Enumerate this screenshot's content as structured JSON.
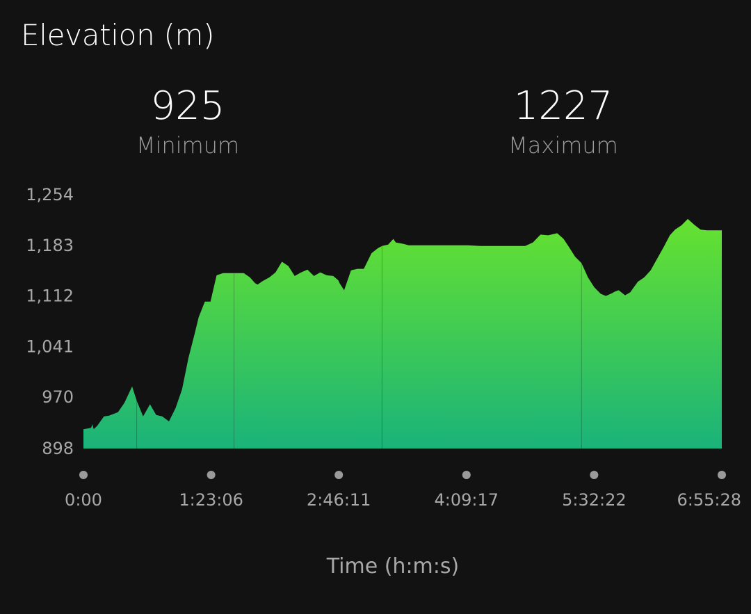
{
  "header": {
    "title": "Elevation (m)"
  },
  "stats": {
    "minimum": {
      "value": "925",
      "label": "Minimum"
    },
    "maximum": {
      "value": "1227",
      "label": "Maximum"
    }
  },
  "chart_data": {
    "type": "area",
    "title": "Elevation (m)",
    "xlabel": "Time (h:m:s)",
    "ylabel": "",
    "x_unit": "seconds",
    "xlim": [
      0,
      24928
    ],
    "ylim": [
      898,
      1254
    ],
    "y_ticks": [
      898,
      970,
      1041,
      1112,
      1183,
      1254
    ],
    "y_tick_labels": [
      "898",
      "970",
      "1,041",
      "1,112",
      "1,183",
      "1,254"
    ],
    "x_ticks": [
      0,
      4986,
      9971,
      14957,
      19942,
      24928
    ],
    "x_tick_labels": [
      "0:00",
      "1:23:06",
      "2:46:11",
      "4:09:17",
      "5:32:22",
      "6:55:28"
    ],
    "fill_color_top": "#66e22f",
    "fill_color_bottom": "#1ab37a",
    "background": "#121212",
    "grid": false,
    "x": [
      0,
      300,
      350,
      400,
      540,
      800,
      1000,
      1350,
      1600,
      1900,
      2080,
      2330,
      2600,
      2840,
      3080,
      3340,
      3600,
      3850,
      4100,
      4350,
      4500,
      4740,
      4960,
      5200,
      5450,
      5700,
      5880,
      6260,
      6500,
      6700,
      6800,
      7000,
      7260,
      7500,
      7750,
      8000,
      8250,
      8500,
      8750,
      9000,
      9250,
      9500,
      9750,
      9950,
      10000,
      10180,
      10450,
      10700,
      10950,
      11250,
      11500,
      11660,
      11900,
      12100,
      12200,
      12500,
      12700,
      12930,
      13000,
      13180,
      13430,
      13650,
      13850,
      14050,
      14350,
      14600,
      15000,
      15500,
      16000,
      16500,
      16750,
      17250,
      17550,
      17850,
      18150,
      18500,
      18750,
      18950,
      19200,
      19450,
      19700,
      19950,
      20200,
      20400,
      20650,
      20750,
      20900,
      21150,
      21350,
      21650,
      21900,
      22150,
      22400,
      22650,
      22900,
      23100,
      23350,
      23600,
      23850,
      24100,
      24350,
      24928
    ],
    "y": [
      925,
      927,
      932,
      925,
      930,
      943,
      944,
      949,
      962,
      985,
      965,
      943,
      960,
      945,
      943,
      936,
      955,
      981,
      1025,
      1060,
      1082,
      1104,
      1104,
      1141,
      1144,
      1144,
      1144,
      1144,
      1138,
      1130,
      1128,
      1133,
      1138,
      1145,
      1160,
      1154,
      1140,
      1145,
      1149,
      1140,
      1145,
      1141,
      1140,
      1134,
      1130,
      1120,
      1148,
      1150,
      1150,
      1172,
      1179,
      1182,
      1184,
      1192,
      1187,
      1185,
      1183,
      1183,
      1183,
      1183,
      1183,
      1183,
      1183,
      1183,
      1183,
      1183,
      1183,
      1182,
      1182,
      1182,
      1182,
      1182,
      1187,
      1198,
      1197,
      1200,
      1192,
      1181,
      1167,
      1158,
      1138,
      1124,
      1115,
      1112,
      1116,
      1118,
      1120,
      1113,
      1117,
      1132,
      1138,
      1148,
      1164,
      1180,
      1197,
      1205,
      1211,
      1220,
      1212,
      1205,
      1204,
      1204
    ],
    "segment_marks_x": [
      2080,
      5880,
      11660,
      19450,
      24928
    ]
  }
}
